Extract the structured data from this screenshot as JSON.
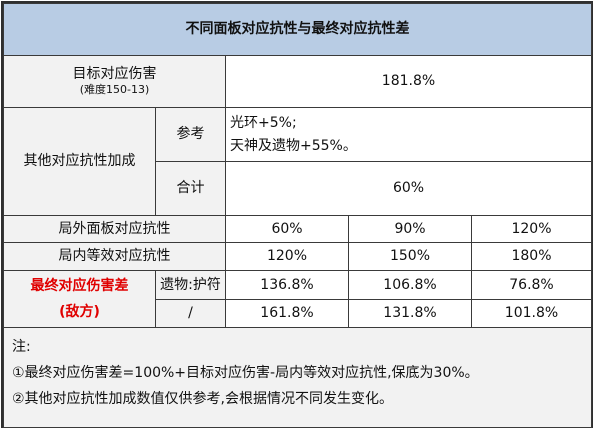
{
  "title": "不同面板对应抗性与最终对应抗性差",
  "target_damage": {
    "label": "目标对应伤害",
    "sublabel": "(难度150-13)",
    "value": "181.8%"
  },
  "other_res": {
    "label": "其他对应抗性加成",
    "ref_label": "参考",
    "ref_line1": "光环+5%;",
    "ref_line2": "天神及遗物+55%。",
    "total_label": "合计",
    "total_value": "60%"
  },
  "outer_res": {
    "label": "局外面板对应抗性",
    "values": [
      "60%",
      "90%",
      "120%"
    ]
  },
  "inner_res": {
    "label": "局内等效对应抗性",
    "values": [
      "120%",
      "150%",
      "180%"
    ]
  },
  "final_diff": {
    "label_line1": "最终对应伤害差",
    "label_line2": "(敌方)",
    "row1_tag": "遗物:护符",
    "row1_values": [
      "136.8%",
      "106.8%",
      "76.8%"
    ],
    "row2_tag": "/",
    "row2_values": [
      "161.8%",
      "131.8%",
      "101.8%"
    ]
  },
  "notes": {
    "heading": "注:",
    "line1": "①最终对应伤害差=100%+目标对应伤害-局内等效对应抗性,保底为30%。",
    "line2": "②其他对应抗性加成数值仅供参考,会根据情况不同发生变化。"
  },
  "colors": {
    "title_bg": "#b8cce4",
    "label_bg": "#f2f2f2",
    "highlight_text": "#e00000"
  }
}
